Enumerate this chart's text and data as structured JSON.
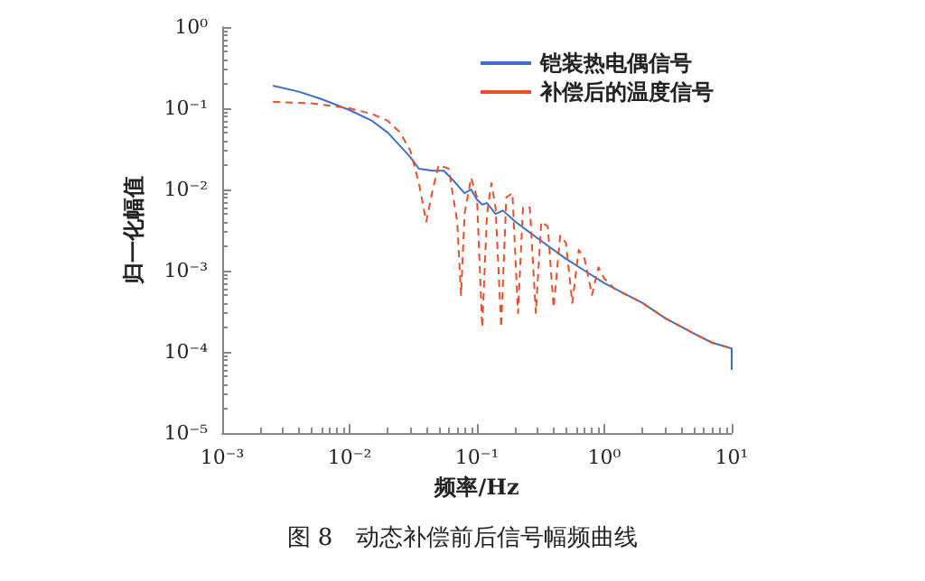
{
  "chart_data": {
    "type": "line",
    "xlabel": "频率/Hz",
    "ylabel": "归一化幅值",
    "annotations": [
      "图 8　动态补偿前后信号幅频曲线"
    ],
    "log": "xy",
    "grid": false,
    "legend": "top right",
    "marker": "none",
    "xlim": [
      0.001,
      10
    ],
    "ylim": [
      1e-05,
      1
    ],
    "xticks": [
      {
        "value": 0.001,
        "label": "10⁻³"
      },
      {
        "value": 0.01,
        "label": "10⁻²"
      },
      {
        "value": 0.1,
        "label": "10⁻¹"
      },
      {
        "value": 1,
        "label": "10⁰"
      },
      {
        "value": 10,
        "label": "10¹"
      }
    ],
    "yticks": [
      {
        "value": 1e-05,
        "label": "10⁻⁵"
      },
      {
        "value": 0.0001,
        "label": "10⁻⁴"
      },
      {
        "value": 0.001,
        "label": "10⁻³"
      },
      {
        "value": 0.01,
        "label": "10⁻²"
      },
      {
        "value": 0.1,
        "label": "10⁻¹"
      },
      {
        "value": 1,
        "label": "10⁰"
      }
    ],
    "series": [
      {
        "name": "铠装热电偶信号",
        "color": "#3a6fd0",
        "line_style": "solid",
        "x": [
          0.0025,
          0.004,
          0.006,
          0.01,
          0.015,
          0.02,
          0.03,
          0.035,
          0.045,
          0.055,
          0.065,
          0.08,
          0.09,
          0.1,
          0.11,
          0.12,
          0.14,
          0.16,
          0.2,
          0.3,
          0.5,
          0.7,
          1,
          2,
          3,
          5,
          7,
          10,
          10
        ],
        "values": [
          0.19,
          0.16,
          0.13,
          0.095,
          0.07,
          0.05,
          0.025,
          0.018,
          0.017,
          0.017,
          0.013,
          0.009,
          0.01,
          0.0075,
          0.0065,
          0.0068,
          0.005,
          0.0055,
          0.004,
          0.0025,
          0.0014,
          0.001,
          0.0007,
          0.0004,
          0.00026,
          0.00017,
          0.00013,
          0.00011,
          6e-05
        ]
      },
      {
        "name": "补偿后的温度信号",
        "color": "#e8502a",
        "line_style": "dashed",
        "x": [
          0.0025,
          0.005,
          0.01,
          0.015,
          0.02,
          0.025,
          0.03,
          0.035,
          0.04,
          0.045,
          0.05,
          0.06,
          0.07,
          0.075,
          0.08,
          0.09,
          0.1,
          0.11,
          0.12,
          0.13,
          0.14,
          0.155,
          0.17,
          0.19,
          0.21,
          0.23,
          0.26,
          0.29,
          0.32,
          0.36,
          0.4,
          0.45,
          0.5,
          0.56,
          0.63,
          0.7,
          0.8,
          0.9,
          1,
          1.2,
          1.5,
          2,
          3,
          5,
          7,
          10
        ],
        "values": [
          0.12,
          0.115,
          0.1,
          0.085,
          0.07,
          0.05,
          0.03,
          0.012,
          0.004,
          0.01,
          0.02,
          0.018,
          0.004,
          0.0005,
          0.005,
          0.014,
          0.008,
          0.0002,
          0.005,
          0.012,
          0.006,
          0.0002,
          0.008,
          0.009,
          0.0003,
          0.006,
          0.006,
          0.0003,
          0.004,
          0.0035,
          0.00035,
          0.0027,
          0.0022,
          0.0004,
          0.0018,
          0.0014,
          0.0005,
          0.0011,
          0.0008,
          0.0006,
          0.0005,
          0.0004,
          0.00026,
          0.00017,
          0.00013,
          0.00011
        ]
      }
    ]
  }
}
